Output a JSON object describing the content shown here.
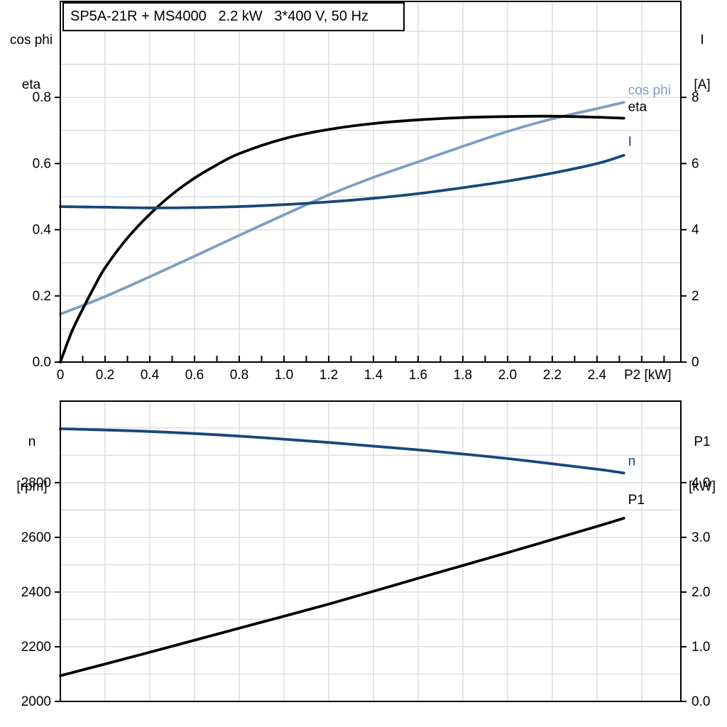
{
  "title_box": "SP5A-21R + MS4000   2.2 kW   3*400 V, 50 Hz",
  "corner_labels": {
    "chart1_left": [
      "cos phi",
      "eta"
    ],
    "chart1_right": [
      "I",
      "[A]"
    ],
    "chart2_left": [
      "n",
      "[rpm]"
    ],
    "chart2_right": [
      "P1",
      "[kW]"
    ]
  },
  "colors": {
    "black": "#000000",
    "dark_blue": "#17477C",
    "light_blue": "#7F9DC3",
    "grid": "#D8D8D8",
    "frame": "#000000",
    "background": "#FFFFFF"
  },
  "chart_data": [
    {
      "type": "line",
      "title": "SP5A-21R + MS4000  2.2 kW  3*400 V, 50 Hz",
      "legend_position": "end-of-curve",
      "grid": true,
      "x_axis": {
        "label": "P2 [kW]",
        "range": [
          0,
          2.775
        ],
        "grid_step": 0.2,
        "minor_tick_step": 0.1,
        "tick_values": [
          0,
          0.2,
          0.4,
          0.6,
          0.8,
          1.0,
          1.2,
          1.4,
          1.6,
          1.8,
          2.0,
          2.2,
          2.4
        ],
        "tick_labels": [
          "0",
          "0.2",
          "0.4",
          "0.6",
          "0.8",
          "1.0",
          "1.2",
          "1.4",
          "1.6",
          "1.8",
          "2.0",
          "2.2",
          "2.4"
        ]
      },
      "left_axis": {
        "label": "cos phi / eta",
        "range": [
          0,
          1.09
        ],
        "grid_step": 0.1,
        "tick_values": [
          0,
          0.2,
          0.4,
          0.6,
          0.8
        ],
        "tick_labels": [
          "0.0",
          "0.2",
          "0.4",
          "0.6",
          "0.8"
        ]
      },
      "right_axis": {
        "label": "I [A]",
        "range": [
          0,
          10.9
        ],
        "tick_values": [
          0,
          2,
          4,
          6,
          8
        ],
        "tick_labels": [
          "0",
          "2",
          "4",
          "6",
          "8"
        ]
      },
      "series": [
        {
          "name": "cos phi",
          "axis": "left",
          "color": "light_blue",
          "label_dy": -11,
          "x": [
            0,
            0.2,
            0.4,
            0.6,
            0.8,
            1.0,
            1.2,
            1.4,
            1.6,
            1.8,
            2.0,
            2.2,
            2.4,
            2.52
          ],
          "y": [
            0.145,
            0.198,
            0.258,
            0.32,
            0.383,
            0.445,
            0.505,
            0.558,
            0.605,
            0.652,
            0.697,
            0.735,
            0.766,
            0.785
          ]
        },
        {
          "name": "eta",
          "axis": "left",
          "color": "black",
          "label_dy": -10,
          "x": [
            0,
            0.05,
            0.1,
            0.15,
            0.2,
            0.3,
            0.4,
            0.5,
            0.6,
            0.7,
            0.8,
            1.0,
            1.2,
            1.4,
            1.6,
            1.8,
            2.0,
            2.2,
            2.4,
            2.52
          ],
          "y": [
            0,
            0.09,
            0.16,
            0.225,
            0.285,
            0.375,
            0.447,
            0.507,
            0.556,
            0.596,
            0.63,
            0.675,
            0.703,
            0.721,
            0.732,
            0.739,
            0.742,
            0.743,
            0.74,
            0.737
          ]
        },
        {
          "name": "I",
          "axis": "right",
          "color": "dark_blue",
          "label_dy": -13,
          "x": [
            0,
            0.2,
            0.4,
            0.6,
            0.8,
            1.0,
            1.2,
            1.4,
            1.6,
            1.8,
            2.0,
            2.2,
            2.4,
            2.52
          ],
          "y": [
            4.7,
            4.68,
            4.66,
            4.67,
            4.7,
            4.76,
            4.84,
            4.95,
            5.09,
            5.27,
            5.47,
            5.71,
            6.0,
            6.25
          ]
        }
      ]
    },
    {
      "type": "line",
      "title": "",
      "legend_position": "end-of-curve",
      "grid": true,
      "x_axis": {
        "label": "",
        "range": [
          0,
          2.775
        ],
        "grid_step": 0.2,
        "minor_tick_step": 0,
        "tick_values": [],
        "tick_labels": []
      },
      "left_axis": {
        "label": "n [rpm]",
        "range": [
          2000,
          3098
        ],
        "grid_step": 100,
        "tick_values": [
          2000,
          2200,
          2400,
          2600,
          2800
        ],
        "tick_labels": [
          "2000",
          "2200",
          "2400",
          "2600",
          "2800"
        ]
      },
      "right_axis": {
        "label": "P1 [kW]",
        "range": [
          0,
          5.49
        ],
        "tick_values": [
          0,
          1,
          2,
          3,
          4
        ],
        "tick_labels": [
          "0.0",
          "1.0",
          "2.0",
          "3.0",
          "4.0"
        ]
      },
      "series": [
        {
          "name": "n",
          "axis": "left",
          "color": "dark_blue",
          "label_dy": -11,
          "x": [
            0,
            0.4,
            0.8,
            1.2,
            1.6,
            2.0,
            2.4,
            2.52
          ],
          "y": [
            2997,
            2987,
            2970,
            2947,
            2920,
            2888,
            2849,
            2835
          ]
        },
        {
          "name": "P1",
          "axis": "right",
          "color": "black",
          "label_dy": -20,
          "x": [
            0,
            0.4,
            0.8,
            1.2,
            1.6,
            2.0,
            2.4,
            2.52
          ],
          "y": [
            0.47,
            0.9,
            1.34,
            1.78,
            2.25,
            2.72,
            3.2,
            3.35
          ]
        }
      ]
    }
  ]
}
